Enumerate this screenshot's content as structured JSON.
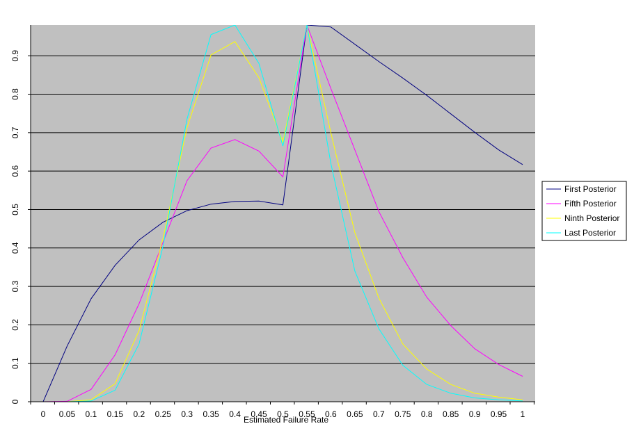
{
  "chart_data": {
    "type": "line",
    "title": "",
    "xlabel": "Estimated Failure Rate",
    "ylabel": "",
    "ylim": [
      0,
      0.98
    ],
    "grid": true,
    "legend_position": "right",
    "plot_background": "#C0C0C0",
    "categories": [
      "0",
      "0.05",
      "0.1",
      "0.15",
      "0.2",
      "0.25",
      "0.3",
      "0.35",
      "0.4",
      "0.45",
      "0.5",
      "0.55",
      "0.6",
      "0.65",
      "0.7",
      "0.75",
      "0.8",
      "0.85",
      "0.9",
      "0.95",
      "1"
    ],
    "y_ticks": [
      "0",
      "0.1",
      "0.2",
      "0.3",
      "0.4",
      "0.5",
      "0.6",
      "0.7",
      "0.8",
      "0.9"
    ],
    "series": [
      {
        "name": "First Posterior",
        "color": "#000080",
        "values": [
          0,
          0.145,
          0.268,
          0.355,
          0.421,
          0.467,
          0.497,
          0.514,
          0.521,
          0.522,
          0.512,
          1.01,
          0.975,
          0.93,
          0.885,
          0.842,
          0.797,
          0.749,
          0.701,
          0.655,
          0.617
        ]
      },
      {
        "name": "Fifth Posterior",
        "color": "#FF00FF",
        "values": [
          0,
          0.001,
          0.032,
          0.122,
          0.255,
          0.415,
          0.575,
          0.66,
          0.682,
          0.652,
          0.585,
          1.02,
          0.815,
          0.655,
          0.495,
          0.375,
          0.272,
          0.198,
          0.138,
          0.097,
          0.066
        ]
      },
      {
        "name": "Ninth Posterior",
        "color": "#FFFF00",
        "values": [
          0,
          0,
          0.005,
          0.047,
          0.185,
          0.425,
          0.713,
          0.902,
          0.937,
          0.843,
          0.675,
          1.02,
          0.7,
          0.44,
          0.27,
          0.15,
          0.085,
          0.045,
          0.022,
          0.012,
          0.005
        ]
      },
      {
        "name": "Last Posterior",
        "color": "#00FFFF",
        "values": [
          0,
          0,
          0.002,
          0.03,
          0.15,
          0.405,
          0.735,
          0.955,
          1.0,
          0.88,
          0.665,
          1.02,
          0.62,
          0.34,
          0.19,
          0.095,
          0.045,
          0.022,
          0.01,
          0.005,
          0.002
        ]
      }
    ]
  }
}
